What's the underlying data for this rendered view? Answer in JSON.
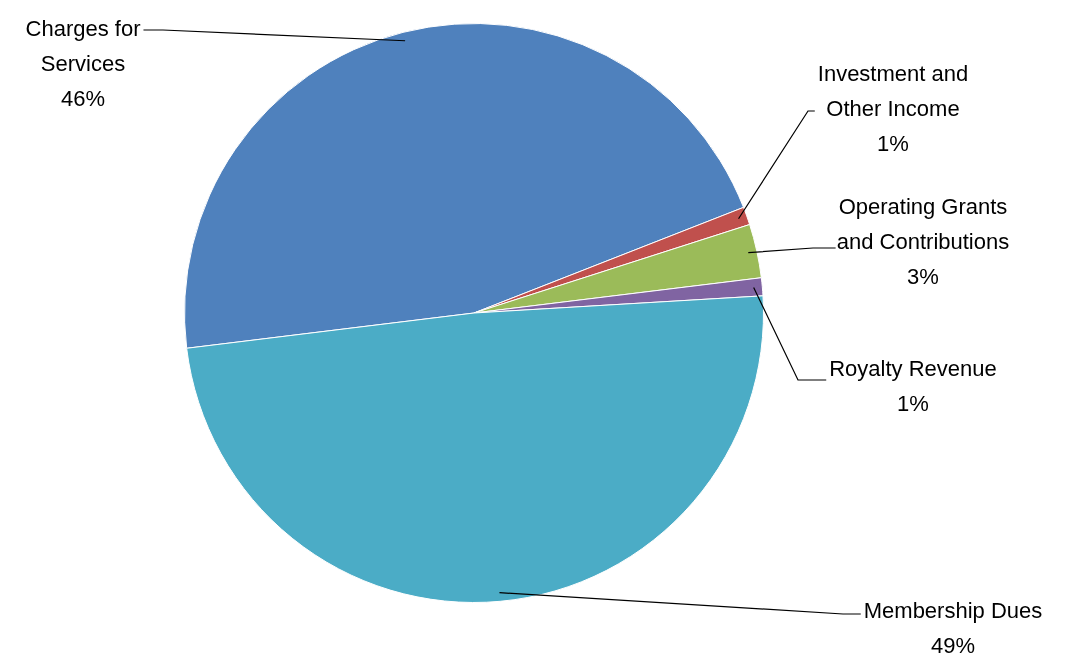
{
  "chart_data": {
    "type": "pie",
    "categories": [
      "Charges for Services",
      "Investment and Other Income",
      "Operating Grants and Contributions",
      "Royalty Revenue",
      "Membership Dues"
    ],
    "values": [
      46,
      1,
      3,
      1,
      49
    ],
    "value_labels": [
      "46%",
      "1%",
      "3%",
      "1%",
      "49%"
    ],
    "colors": [
      "#4f81bd",
      "#c0504d",
      "#9bbb59",
      "#8064a2",
      "#4bacc6"
    ],
    "legend": false
  }
}
